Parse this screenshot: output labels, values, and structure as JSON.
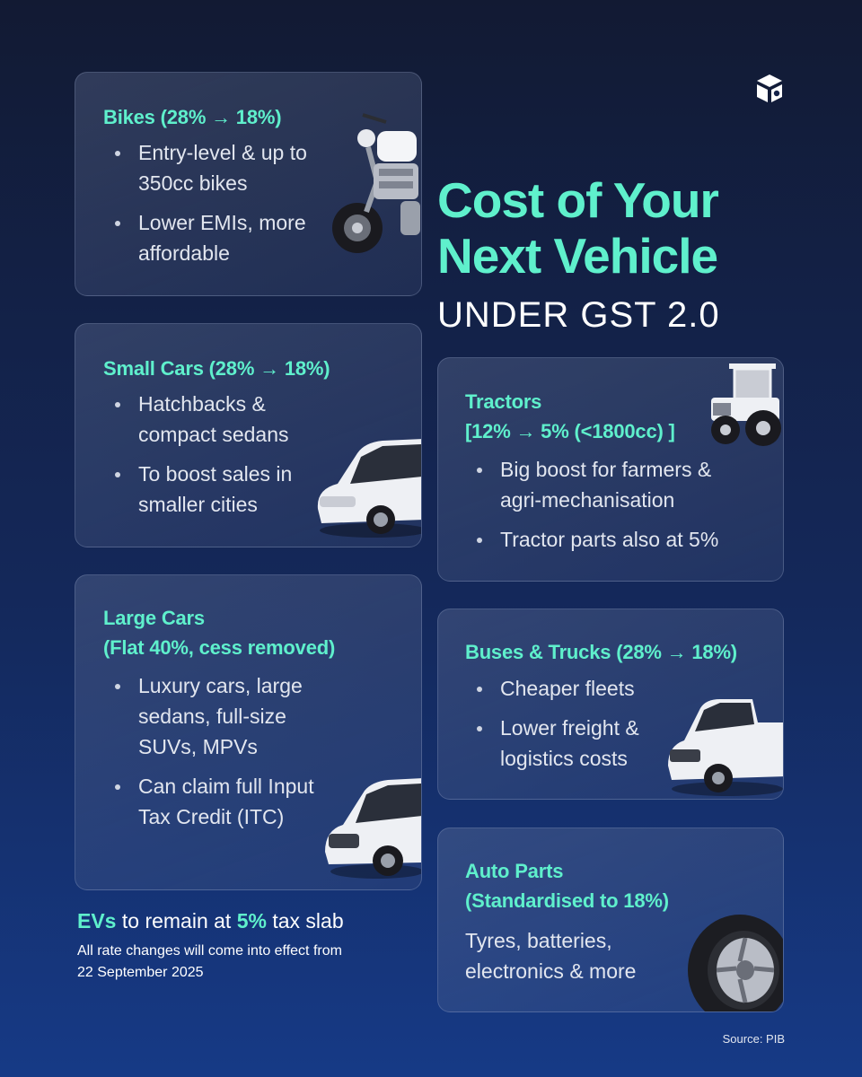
{
  "title": {
    "line1": "Cost of Your",
    "line2": "Next Vehicle",
    "subtitle": "UNDER GST 2.0"
  },
  "logo": {
    "icon": "brand-logo-icon"
  },
  "cards": {
    "bikes": {
      "title": "Bikes (28% → 18%)",
      "bullets": [
        "Entry-level & up to 350cc bikes",
        "Lower EMIs, more affordable"
      ],
      "icon": "motorcycle-icon"
    },
    "small_cars": {
      "title": "Small Cars (28% → 18%)",
      "bullets": [
        "Hatchbacks & compact sedans",
        "To boost sales in smaller cities"
      ],
      "icon": "hatchback-car-icon"
    },
    "large_cars": {
      "title_line1": "Large Cars",
      "title_line2": "(Flat 40%, cess removed)",
      "bullets": [
        "Luxury cars, large sedans, full-size SUVs, MPVs",
        "Can claim full Input Tax Credit (ITC)"
      ],
      "icon": "suv-icon"
    },
    "tractors": {
      "title_line1": "Tractors",
      "title_line2": "[12% → 5% (<1800cc) ]",
      "bullets": [
        "Big boost for farmers & agri-mechanisation",
        "Tractor parts also at 5%"
      ],
      "icon": "tractor-icon"
    },
    "buses_trucks": {
      "title": "Buses & Trucks (28% → 18%)",
      "bullets": [
        "Cheaper fleets",
        "Lower freight & logistics costs"
      ],
      "icon": "pickup-truck-icon"
    },
    "auto_parts": {
      "title_line1": "Auto Parts",
      "title_line2": "(Standardised to 18%)",
      "text": "Tyres, batteries, electronics & more",
      "icon": "tyre-icon"
    }
  },
  "ev_note": {
    "evs": "EVs",
    "middle": " to remain at ",
    "rate": "5%",
    "end": " tax slab"
  },
  "effective_note": "All rate changes will come into effect from 22 September 2025",
  "source": "Source: PIB",
  "colors": {
    "accent": "#5ff0cc",
    "background_top": "#121a33",
    "background_bottom": "#163a86"
  }
}
